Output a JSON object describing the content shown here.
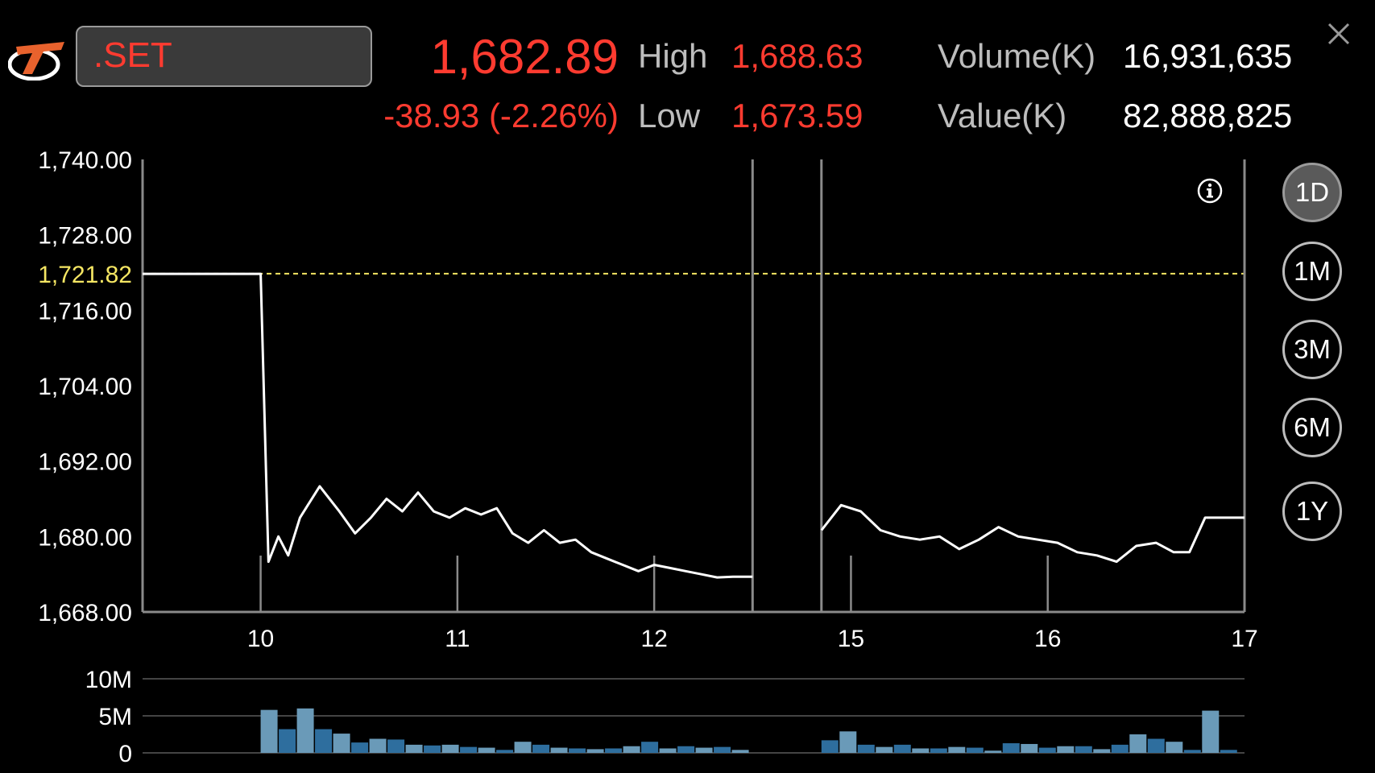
{
  "header": {
    "symbol": ".SET",
    "last_price": "1,682.89",
    "change": "-38.93 (-2.26%)",
    "high_label": "High",
    "high_value": "1,688.63",
    "low_label": "Low",
    "low_value": "1,673.59",
    "volume_label": "Volume(K)",
    "volume_value": "16,931,635",
    "value_label": "Value(K)",
    "value_value": "82,888,825"
  },
  "timeframes": [
    {
      "label": "1D",
      "active": true
    },
    {
      "label": "1M",
      "active": false
    },
    {
      "label": "3M",
      "active": false
    },
    {
      "label": "6M",
      "active": false
    },
    {
      "label": "1Y",
      "active": false
    }
  ],
  "colors": {
    "accent_red": "#ff3b30",
    "reference_line": "#f5e663",
    "volume_bar_light": "#6a9ab8",
    "volume_bar_dark": "#2e6e9e"
  },
  "icons": {
    "logo": "brand-logo-icon",
    "close": "close-icon",
    "info": "info-icon"
  },
  "chart_data": [
    {
      "type": "line",
      "y_ticks": [
        "1,740.00",
        "1,728.00",
        "1,716.00",
        "1,704.00",
        "1,692.00",
        "1,680.00",
        "1,668.00"
      ],
      "ylim": [
        1668,
        1740
      ],
      "reference_value": 1721.82,
      "reference_label": "1,721.82",
      "x_ticks": [
        "10",
        "11",
        "12",
        "15",
        "16",
        "17"
      ],
      "x_tick_index": [
        3,
        8,
        13,
        18,
        23,
        28
      ],
      "x_range": [
        0,
        28
      ],
      "session_breaks": [
        15.5,
        17.25
      ],
      "series": [
        {
          "x": [
            0,
            3,
            3.2,
            3.45,
            3.7,
            4.0,
            4.5,
            5.0,
            5.4,
            5.8,
            6.2,
            6.6,
            7.0,
            7.4,
            7.8,
            8.2,
            8.6,
            9.0,
            9.4,
            9.8,
            10.2,
            10.6,
            11.0,
            11.4,
            11.8,
            12.2,
            12.6,
            13.0,
            13.4,
            13.8,
            14.2,
            14.6,
            15.0,
            15.5,
            null,
            17.25,
            17.75,
            18.25,
            18.75,
            19.25,
            19.75,
            20.25,
            20.75,
            21.25,
            21.75,
            22.25,
            22.75,
            23.25,
            23.75,
            24.25,
            24.75,
            25.25,
            25.75,
            26.2,
            26.6,
            27.0,
            27.5,
            28.0
          ],
          "y": [
            1721.8,
            1721.8,
            1676.0,
            1680.0,
            1677.0,
            1683.0,
            1688.0,
            1684.0,
            1680.5,
            1683.0,
            1686.0,
            1684.0,
            1687.0,
            1684.0,
            1683.0,
            1684.5,
            1683.5,
            1684.5,
            1680.5,
            1679.0,
            1681.0,
            1679.0,
            1679.5,
            1677.5,
            1676.5,
            1675.5,
            1674.5,
            1675.5,
            1675.0,
            1674.5,
            1674.0,
            1673.5,
            1673.6,
            1673.6,
            null,
            1681.0,
            1685.0,
            1684.0,
            1681.0,
            1680.0,
            1679.5,
            1680.0,
            1678.0,
            1679.5,
            1681.5,
            1680.0,
            1679.5,
            1679.0,
            1677.5,
            1677.0,
            1676.0,
            1678.5,
            1679.0,
            1677.5,
            1677.5,
            1683.0,
            1683.0,
            1683.0
          ]
        }
      ]
    },
    {
      "type": "bar",
      "y_ticks": [
        "10M",
        "5M",
        "0"
      ],
      "ylim": [
        0,
        10
      ],
      "unit": "M",
      "values": [
        5.8,
        3.2,
        6.0,
        3.2,
        2.6,
        1.4,
        1.9,
        1.8,
        1.1,
        1.0,
        1.1,
        0.8,
        0.7,
        0.4,
        1.5,
        1.1,
        0.7,
        0.6,
        0.5,
        0.6,
        0.9,
        1.5,
        0.6,
        0.9,
        0.7,
        0.8,
        0.4,
        1.7,
        2.9,
        1.1,
        0.8,
        1.1,
        0.6,
        0.6,
        0.8,
        0.7,
        0.3,
        1.3,
        1.2,
        0.7,
        0.9,
        0.9,
        0.5,
        1.1,
        2.5,
        1.9,
        1.5,
        0.4,
        5.7,
        0.4
      ],
      "session_starts": [
        0,
        27
      ]
    }
  ]
}
